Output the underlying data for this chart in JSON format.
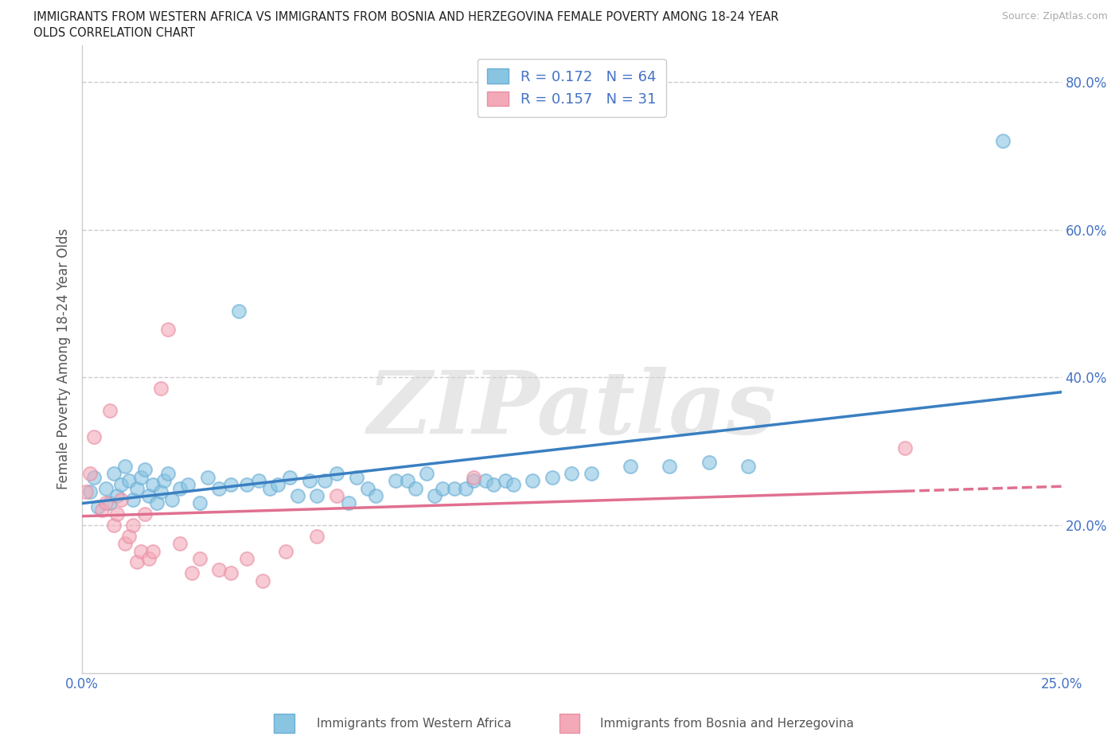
{
  "title_line1": "IMMIGRANTS FROM WESTERN AFRICA VS IMMIGRANTS FROM BOSNIA AND HERZEGOVINA FEMALE POVERTY AMONG 18-24 YEAR",
  "title_line2": "OLDS CORRELATION CHART",
  "source": "Source: ZipAtlas.com",
  "ylabel": "Female Poverty Among 18-24 Year Olds",
  "xlim": [
    0.0,
    0.25
  ],
  "ylim": [
    0.0,
    0.85
  ],
  "xticks": [
    0.0,
    0.05,
    0.1,
    0.15,
    0.2,
    0.25
  ],
  "yticks": [
    0.0,
    0.2,
    0.4,
    0.6,
    0.8
  ],
  "ytick_labels": [
    "",
    "20.0%",
    "40.0%",
    "60.0%",
    "80.0%"
  ],
  "xtick_labels": [
    "0.0%",
    "",
    "",
    "",
    "",
    "25.0%"
  ],
  "blue_R": 0.172,
  "blue_N": 64,
  "pink_R": 0.157,
  "pink_N": 31,
  "blue_color": "#89c4e1",
  "pink_color": "#f4a9b8",
  "blue_edge": "#6baed6",
  "pink_edge": "#e88fa4",
  "blue_line_color": "#3a7fc1",
  "pink_line_color": "#e07090",
  "watermark": "ZIPatlas",
  "watermark_color": "#d0d0d0",
  "legend_color": "#4472c6",
  "blue_label": "Immigrants from Western Africa",
  "pink_label": "Immigrants from Bosnia and Herzegovina",
  "blue_x": [
    0.002,
    0.003,
    0.004,
    0.006,
    0.007,
    0.008,
    0.009,
    0.01,
    0.011,
    0.012,
    0.013,
    0.014,
    0.015,
    0.016,
    0.017,
    0.018,
    0.019,
    0.02,
    0.021,
    0.022,
    0.023,
    0.025,
    0.027,
    0.03,
    0.032,
    0.035,
    0.038,
    0.04,
    0.042,
    0.045,
    0.048,
    0.05,
    0.053,
    0.055,
    0.058,
    0.06,
    0.062,
    0.065,
    0.068,
    0.07,
    0.073,
    0.075,
    0.08,
    0.083,
    0.085,
    0.088,
    0.09,
    0.092,
    0.095,
    0.098,
    0.1,
    0.103,
    0.105,
    0.108,
    0.11,
    0.115,
    0.12,
    0.125,
    0.13,
    0.14,
    0.15,
    0.16,
    0.17,
    0.235
  ],
  "blue_y": [
    0.245,
    0.265,
    0.225,
    0.25,
    0.23,
    0.27,
    0.24,
    0.255,
    0.28,
    0.26,
    0.235,
    0.25,
    0.265,
    0.275,
    0.24,
    0.255,
    0.23,
    0.245,
    0.26,
    0.27,
    0.235,
    0.25,
    0.255,
    0.23,
    0.265,
    0.25,
    0.255,
    0.49,
    0.255,
    0.26,
    0.25,
    0.255,
    0.265,
    0.24,
    0.26,
    0.24,
    0.26,
    0.27,
    0.23,
    0.265,
    0.25,
    0.24,
    0.26,
    0.26,
    0.25,
    0.27,
    0.24,
    0.25,
    0.25,
    0.25,
    0.26,
    0.26,
    0.255,
    0.26,
    0.255,
    0.26,
    0.265,
    0.27,
    0.27,
    0.28,
    0.28,
    0.285,
    0.28,
    0.72
  ],
  "pink_x": [
    0.001,
    0.002,
    0.003,
    0.005,
    0.006,
    0.007,
    0.008,
    0.009,
    0.01,
    0.011,
    0.012,
    0.013,
    0.014,
    0.015,
    0.016,
    0.017,
    0.018,
    0.02,
    0.022,
    0.025,
    0.028,
    0.03,
    0.035,
    0.038,
    0.042,
    0.046,
    0.052,
    0.06,
    0.065,
    0.1,
    0.21
  ],
  "pink_y": [
    0.245,
    0.27,
    0.32,
    0.22,
    0.23,
    0.355,
    0.2,
    0.215,
    0.235,
    0.175,
    0.185,
    0.2,
    0.15,
    0.165,
    0.215,
    0.155,
    0.165,
    0.385,
    0.465,
    0.175,
    0.135,
    0.155,
    0.14,
    0.135,
    0.155,
    0.125,
    0.165,
    0.185,
    0.24,
    0.265,
    0.305
  ]
}
